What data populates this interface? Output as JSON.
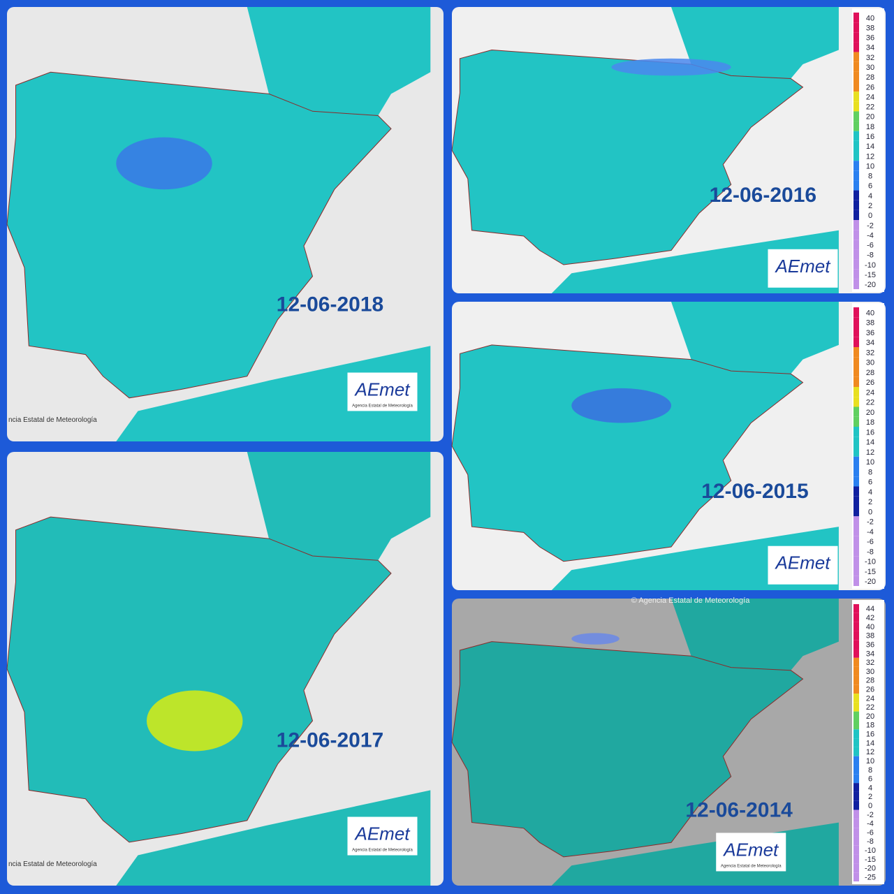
{
  "panels": [
    {
      "date": "12-06-2018",
      "footer": "ncia Estatal de Meteorología",
      "logo": "AEmet",
      "logo_sub": "Agencia Estatal de Meteorología"
    },
    {
      "date": "12-06-2016",
      "logo": "AEmet"
    },
    {
      "date": "12-06-2015",
      "logo": "AEmet"
    },
    {
      "date": "12-06-2017",
      "footer": "ncia Estatal de Meteorología",
      "logo": "AEmet",
      "logo_sub": "Agencia Estatal de Meteorología"
    },
    {
      "date": "12-06-2014",
      "logo": "AEmet",
      "logo_sub": "Agencia Estatal de Meteorología",
      "copyright": "© Agencia Estatal de Meteorología"
    }
  ],
  "legend_a": [
    40,
    38,
    36,
    34,
    32,
    30,
    28,
    26,
    24,
    22,
    20,
    18,
    16,
    14,
    12,
    10,
    8,
    6,
    4,
    2,
    0,
    -2,
    -4,
    -6,
    -8,
    -10,
    -15,
    -20
  ],
  "legend_b": [
    44,
    42,
    40,
    38,
    36,
    34,
    32,
    30,
    28,
    26,
    24,
    22,
    20,
    18,
    16,
    14,
    12,
    10,
    8,
    6,
    4,
    2,
    0,
    -2,
    -4,
    -6,
    -8,
    -10,
    -15,
    -20,
    -25
  ]
}
